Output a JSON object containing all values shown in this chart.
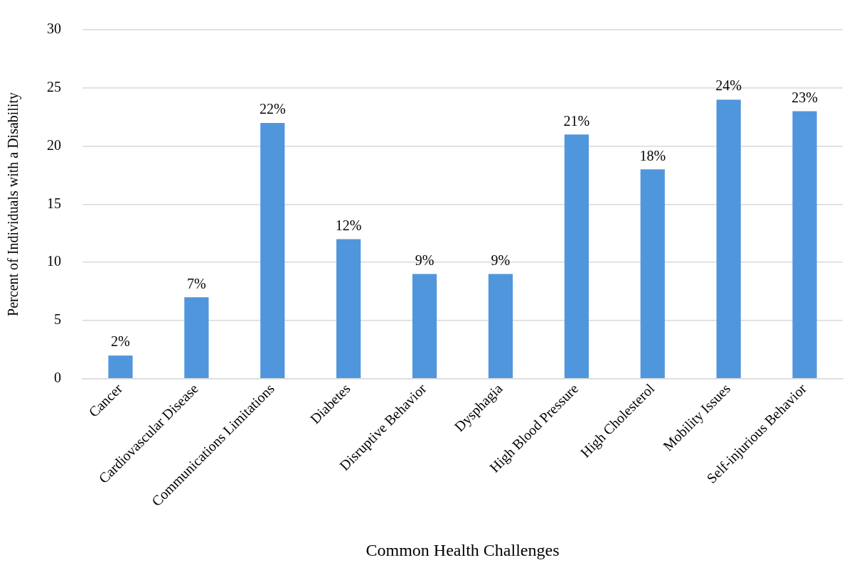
{
  "chart_data": {
    "type": "bar",
    "xlabel": "Common Health Challenges",
    "ylabel": "Percent of Individuals with a Disability",
    "categories": [
      "Cancer",
      "Cardiovascular Disease",
      "Communications Limitations",
      "Diabetes",
      "Disruptive Behavior",
      "Dysphagia",
      "High Blood Pressure",
      "High Cholesterol",
      "Mobility Issues",
      "Self-injurious Behavior"
    ],
    "values": [
      2,
      7,
      22,
      12,
      9,
      9,
      21,
      18,
      24,
      23
    ],
    "value_labels": [
      "2%",
      "7%",
      "22%",
      "12%",
      "9%",
      "9%",
      "21%",
      "18%",
      "24%",
      "23%"
    ],
    "color": "#5096dc",
    "ylim": [
      0,
      30
    ],
    "yticks": [
      0,
      5,
      10,
      15,
      20,
      25,
      30
    ],
    "grid": "y",
    "legend": false
  }
}
